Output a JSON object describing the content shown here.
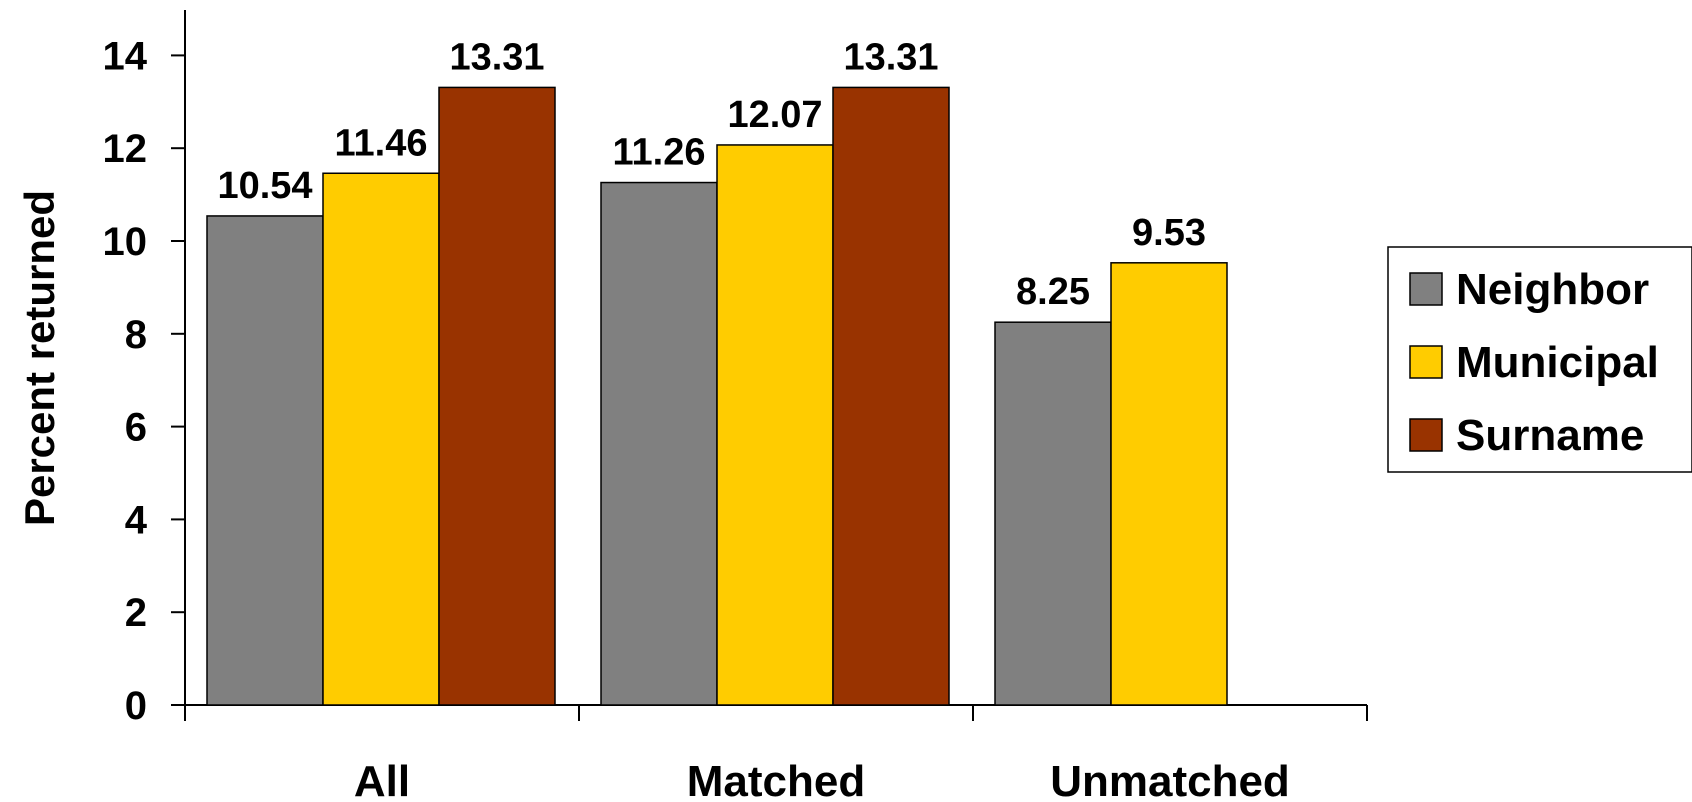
{
  "chart_data": {
    "type": "bar",
    "categories": [
      "All",
      "Matched",
      "Unmatched"
    ],
    "series": [
      {
        "name": "Neighbor",
        "color": "#808080",
        "values": [
          10.54,
          11.26,
          8.25
        ]
      },
      {
        "name": "Municipal",
        "color": "#FFCC00",
        "values": [
          11.46,
          12.07,
          9.53
        ]
      },
      {
        "name": "Surname",
        "color": "#993300",
        "values": [
          13.31,
          13.31,
          null
        ]
      }
    ],
    "data_labels": [
      [
        "10.54",
        "11.26",
        "8.25"
      ],
      [
        "11.46",
        "12.07",
        "9.53"
      ],
      [
        "13.31",
        "13.31",
        ""
      ]
    ],
    "title": "",
    "xlabel": "",
    "ylabel": "Percent returned",
    "ylim": [
      0,
      15
    ],
    "yticks": [
      0,
      2,
      4,
      6,
      8,
      10,
      12,
      14
    ],
    "grid": false,
    "legend_position": "right"
  }
}
